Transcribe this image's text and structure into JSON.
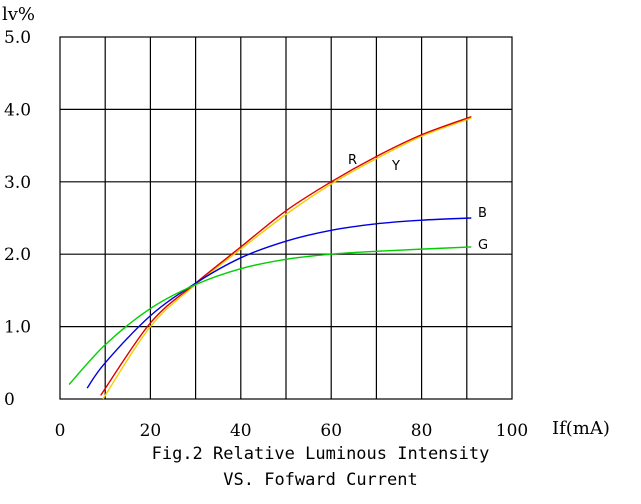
{
  "chart_data": {
    "type": "line",
    "title": "",
    "caption_line1": "Fig.2 Relative Luminous Intensity",
    "caption_line2": "VS. Fofward Current",
    "xlabel": "If(mA)",
    "ylabel": "lv%",
    "xlim": [
      0,
      100
    ],
    "ylim": [
      0,
      5
    ],
    "xticks": [
      0,
      20,
      40,
      60,
      80,
      100
    ],
    "yticks": [
      0,
      1,
      2,
      3,
      4,
      5
    ],
    "xtick_labels": [
      "0",
      "20",
      "40",
      "60",
      "80",
      "100"
    ],
    "ytick_labels": [
      "0",
      "1.0",
      "2.0",
      "3.0",
      "4.0",
      "5.0"
    ],
    "grid": true,
    "series": [
      {
        "name": "R",
        "color": "#e00000",
        "x": [
          9,
          20,
          30,
          40,
          50,
          60,
          70,
          80,
          91
        ],
        "y": [
          0.05,
          1.05,
          1.6,
          2.1,
          2.6,
          3.0,
          3.35,
          3.65,
          3.9
        ]
      },
      {
        "name": "Y",
        "color": "#f0d000",
        "x": [
          9.5,
          20,
          30,
          40,
          50,
          60,
          70,
          80,
          91
        ],
        "y": [
          0.0,
          1.0,
          1.58,
          2.07,
          2.55,
          2.97,
          3.32,
          3.63,
          3.88
        ]
      },
      {
        "name": "B",
        "color": "#0000e0",
        "x": [
          6,
          10,
          20,
          30,
          40,
          50,
          60,
          70,
          80,
          91
        ],
        "y": [
          0.15,
          0.5,
          1.15,
          1.6,
          1.95,
          2.18,
          2.33,
          2.42,
          2.47,
          2.5
        ]
      },
      {
        "name": "G",
        "color": "#00d000",
        "x": [
          2,
          10,
          20,
          30,
          40,
          50,
          60,
          70,
          80,
          91
        ],
        "y": [
          0.2,
          0.75,
          1.25,
          1.58,
          1.8,
          1.93,
          2.0,
          2.04,
          2.07,
          2.1
        ]
      }
    ]
  }
}
